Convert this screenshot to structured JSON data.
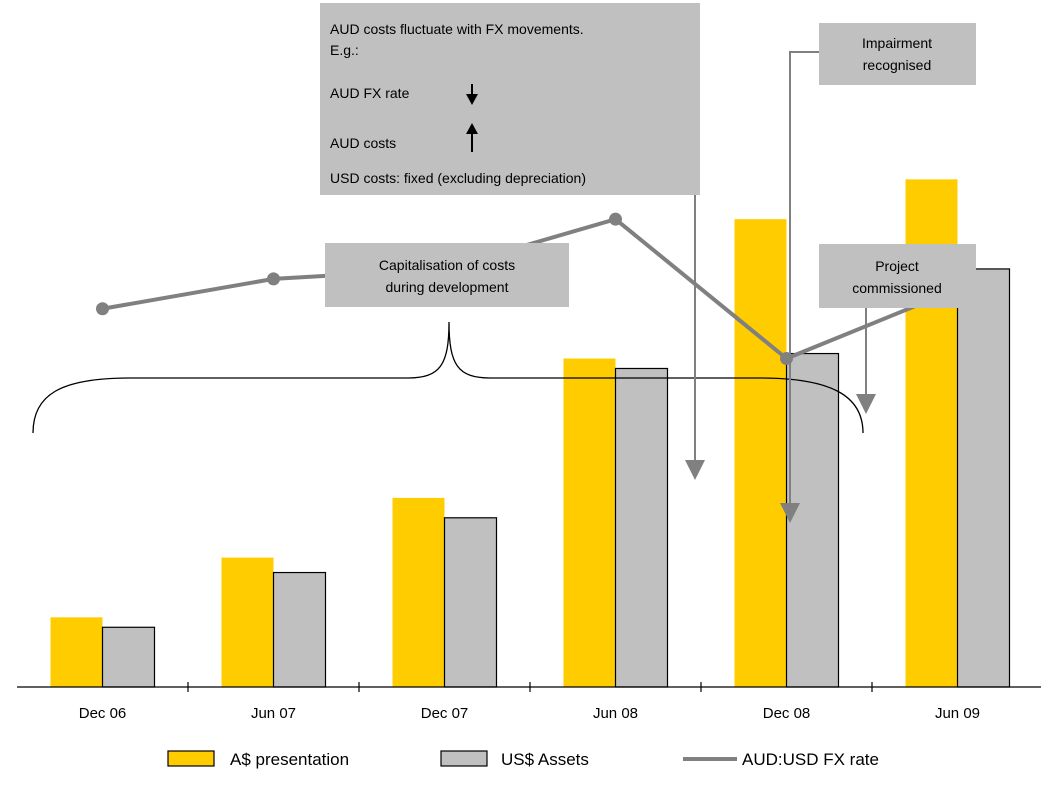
{
  "chart_data": {
    "type": "bar",
    "categories": [
      "Dec 06",
      "Jun 07",
      "Dec 07",
      "Jun 08",
      "Dec 08",
      "Jun 09"
    ],
    "series": [
      {
        "name": "A$ presentation",
        "type": "bar",
        "color": "#FFCC00",
        "values": [
          14,
          26,
          38,
          66,
          94,
          102
        ]
      },
      {
        "name": "US$ Assets",
        "type": "bar",
        "color": "#C0C0C0",
        "values": [
          12,
          23,
          34,
          64,
          67,
          84
        ]
      },
      {
        "name": "AUD:USD FX rate",
        "type": "line",
        "color": "#808080",
        "values": [
          76,
          82,
          84,
          94,
          66,
          80
        ]
      }
    ],
    "title": "",
    "xlabel": "",
    "ylabel": "",
    "ylim": [
      0,
      130
    ],
    "grid": false,
    "legend": "bottom"
  },
  "annotations": {
    "fx_box": {
      "line1": "AUD costs fluctuate with FX movements.",
      "line2": "E.g.:",
      "fx_rate_label": "AUD FX rate",
      "costs_label": "AUD costs",
      "usd_label": "USD costs: fixed (excluding depreciation)"
    },
    "impairment": {
      "line1": "Impairment",
      "line2": "recognised"
    },
    "capitalisation": {
      "line1": "Capitalisation of costs",
      "line2": "during development"
    },
    "commissioned": {
      "line1": "Project",
      "line2": "commissioned"
    }
  }
}
